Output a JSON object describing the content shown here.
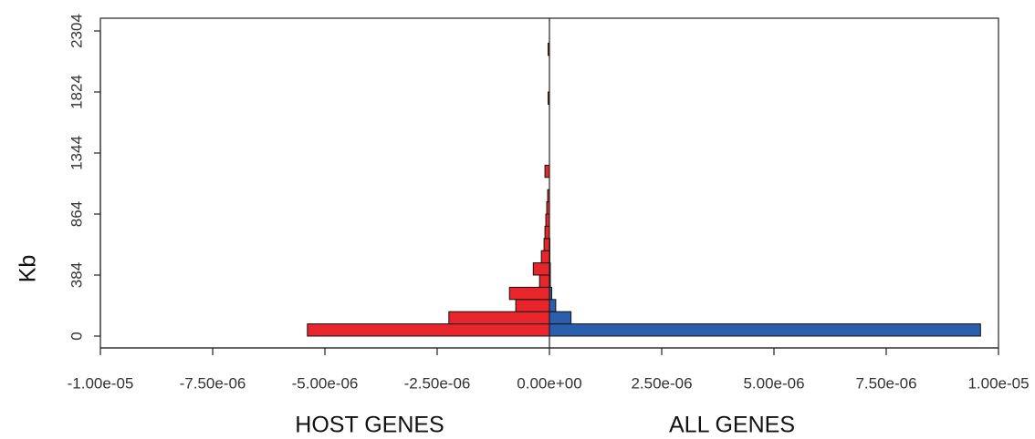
{
  "chart_data": {
    "type": "bar",
    "orientation": "horizontal",
    "y_label": "Kb",
    "categories": [
      "0",
      null,
      null,
      null,
      null,
      "384",
      null,
      null,
      null,
      null,
      "864",
      null,
      null,
      null,
      null,
      "1344",
      null,
      null,
      null,
      null,
      "1824",
      null,
      null,
      null,
      null,
      "2304"
    ],
    "series": [
      {
        "name": "HOST GENES",
        "color": "#e8252a",
        "values": [
          -5.39e-06,
          -2.24e-06,
          -7.5e-07,
          -8.9e-07,
          -2.2e-07,
          -3.6e-07,
          -1.8e-07,
          -1.2e-07,
          -1e-07,
          -8e-08,
          -6e-08,
          -4e-08,
          0,
          -1e-07,
          0,
          0,
          0,
          0,
          0,
          -3e-08,
          0,
          0,
          0,
          -3e-08,
          0,
          0
        ]
      },
      {
        "name": "ALL GENES",
        "color": "#2a5fae",
        "values": [
          9.6e-06,
          4.8e-07,
          1.4e-07,
          5e-08,
          2e-08,
          2e-08,
          1e-08,
          1e-08,
          0,
          0,
          0,
          0,
          0,
          0,
          0,
          0,
          0,
          0,
          0,
          0,
          0,
          0,
          0,
          0,
          0,
          0
        ]
      }
    ],
    "xlim": [
      -1e-05,
      1e-05
    ],
    "xticks": [
      {
        "value": -1e-05,
        "label": "-1.00e-05"
      },
      {
        "value": -7.5e-06,
        "label": "-7.50e-06"
      },
      {
        "value": -5e-06,
        "label": "-5.00e-06"
      },
      {
        "value": -2.5e-06,
        "label": "-2.50e-06"
      },
      {
        "value": 0,
        "label": "0.00e+00"
      },
      {
        "value": 2.5e-06,
        "label": "2.50e-06"
      },
      {
        "value": 5e-06,
        "label": "5.00e-06"
      },
      {
        "value": 7.5e-06,
        "label": "7.50e-06"
      },
      {
        "value": 1e-05,
        "label": "1.00e-05"
      }
    ]
  }
}
